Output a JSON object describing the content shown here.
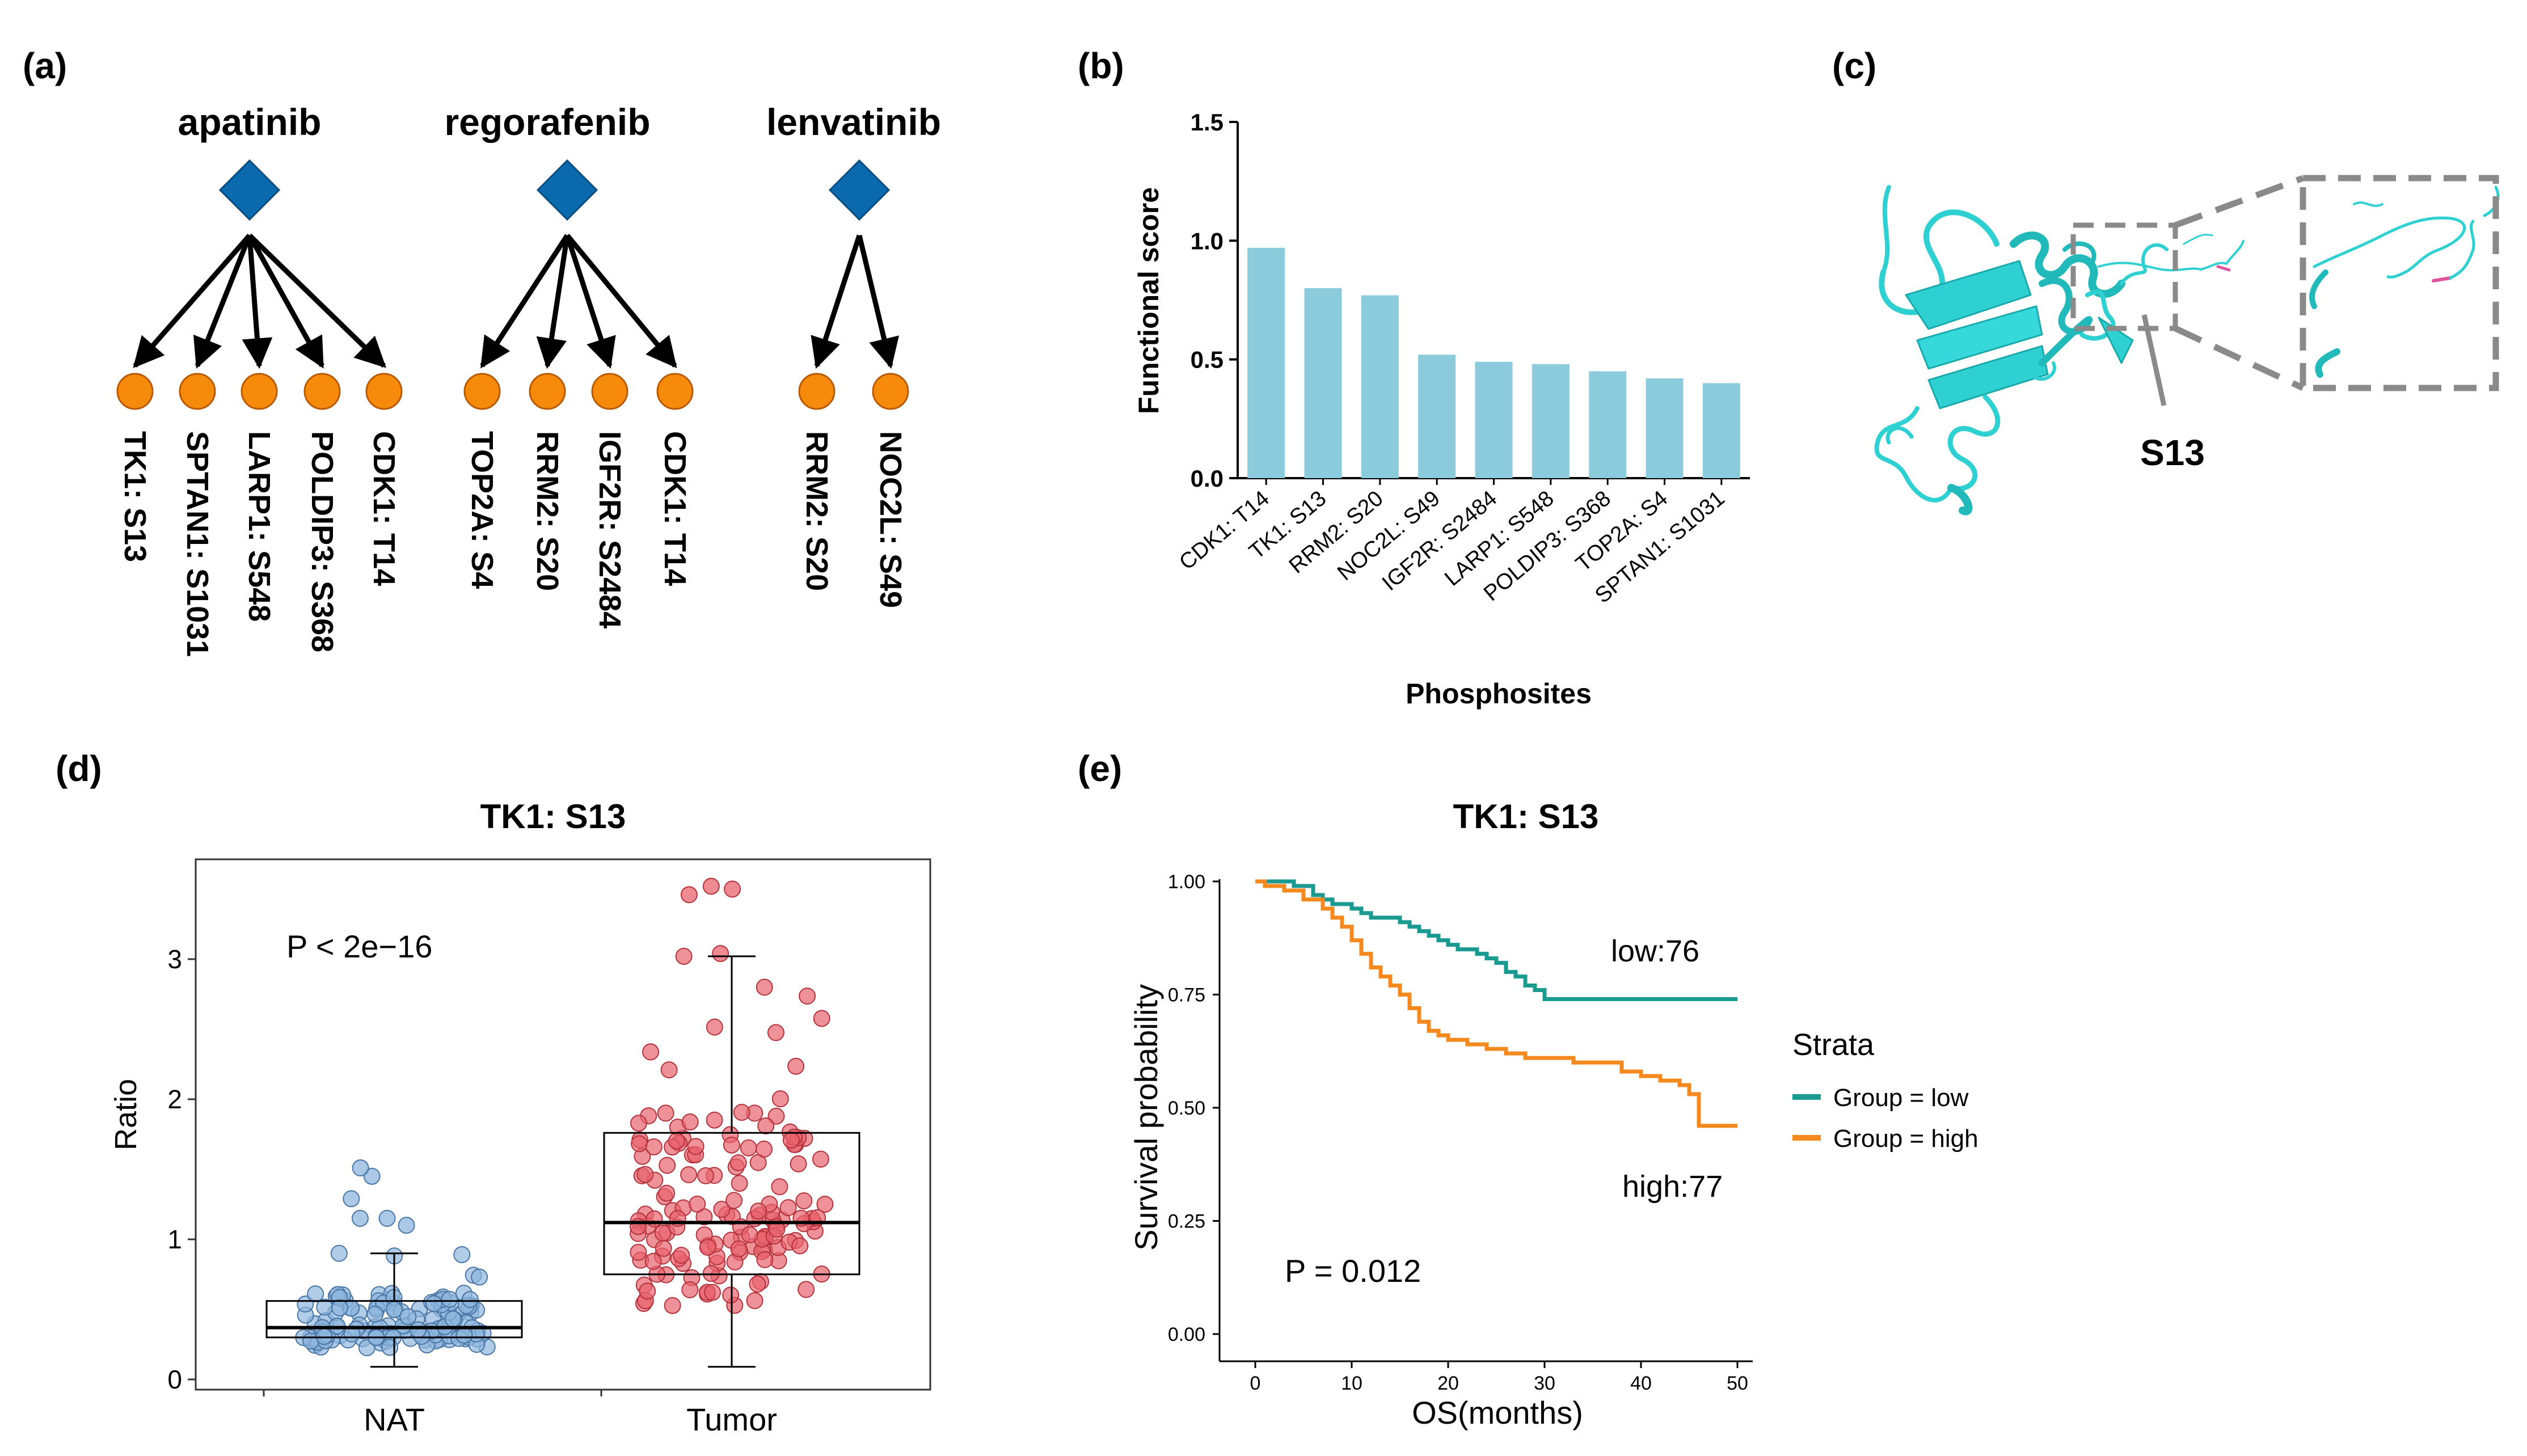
{
  "panels": {
    "a": {
      "label": "(a)",
      "drugs": [
        {
          "name": "apatinib",
          "targets": [
            "TK1: S13",
            "SPTAN1: S1031",
            "LARP1: S548",
            "POLDIP3: S368",
            "CDK1: T14"
          ]
        },
        {
          "name": "regorafenib",
          "targets": [
            "TOP2A: S4",
            "RRM2: S20",
            "IGF2R: S2484",
            "CDK1: T14"
          ]
        },
        {
          "name": "lenvatinib",
          "targets": [
            "RRM2: S20",
            "NOC2L: S49"
          ]
        }
      ]
    },
    "b": {
      "label": "(b)"
    },
    "c": {
      "label": "(c)",
      "site_label": "S13"
    },
    "d": {
      "label": "(d)",
      "p_text": "P < 2e−16"
    },
    "e": {
      "label": "(e)",
      "p_text": "P = 0.012",
      "low_count": "low:76",
      "high_count": "high:77",
      "legend_title": "Strata",
      "legend_items": [
        "Group = low",
        "Group = high"
      ]
    }
  },
  "colors": {
    "diamond": "#0a6aad",
    "node": "#f58a0b",
    "bar": "#8ccbdc",
    "nat_point": "#8fb6dd",
    "tumor_point": "#e8636c",
    "low_line": "#1a9a91",
    "high_line": "#f48a1f",
    "protein": "#2fd0d2",
    "dash": "#8a8a8a"
  },
  "chart_data": [
    {
      "type": "bar",
      "title": "",
      "xlabel": "Phosphosites",
      "ylabel": "Functional score",
      "categories": [
        "CDK1: T14",
        "TK1: S13",
        "RRM2: S20",
        "NOC2L: S49",
        "IGF2R: S2484",
        "LARP1: S548",
        "POLDIP3: S368",
        "TOP2A: S4",
        "SPTAN1: S1031"
      ],
      "values": [
        0.97,
        0.8,
        0.77,
        0.52,
        0.49,
        0.48,
        0.45,
        0.42,
        0.4
      ],
      "ylim": [
        0,
        1.5
      ],
      "yticks": [
        "0.0",
        "0.5",
        "1.0",
        "1.5"
      ]
    },
    {
      "type": "box",
      "title": "TK1: S13",
      "xlabel": "",
      "ylabel": "Ratio",
      "categories": [
        "NAT",
        "Tumor"
      ],
      "box_stats": [
        {
          "name": "NAT",
          "whisker_low": 0.09,
          "q1": 0.3,
          "median": 0.37,
          "q3": 0.56,
          "whisker_high": 0.9,
          "outliers": [
            1.45,
            1.29,
            1.51,
            1.15,
            1.15,
            1.1
          ]
        },
        {
          "name": "Tumor",
          "whisker_low": 0.09,
          "q1": 0.75,
          "median": 1.12,
          "q3": 1.76,
          "whisker_high": 3.02,
          "outliers": [
            3.5,
            3.52,
            3.46,
            3.04
          ]
        }
      ],
      "ylim": [
        -0.05,
        3.65
      ],
      "yticks": [
        "0",
        "1",
        "2",
        "3"
      ]
    },
    {
      "type": "line",
      "title": "TK1: S13",
      "xlabel": "OS(months)",
      "ylabel": "Survival probability",
      "xlim": [
        0,
        50
      ],
      "ylim": [
        0,
        1
      ],
      "xticks": [
        "0",
        "10",
        "20",
        "30",
        "40",
        "50"
      ],
      "yticks": [
        "0.00",
        "0.25",
        "0.50",
        "0.75",
        "1.00"
      ],
      "series": [
        {
          "name": "Group = low",
          "x": [
            0,
            3,
            4,
            5,
            6,
            7,
            8,
            9,
            10,
            11,
            12,
            13,
            15,
            16,
            17,
            18,
            19,
            20,
            21,
            22,
            23,
            24,
            25,
            26,
            27,
            28,
            29,
            30,
            50
          ],
          "y": [
            1.0,
            1.0,
            0.99,
            0.99,
            0.97,
            0.96,
            0.95,
            0.95,
            0.94,
            0.93,
            0.92,
            0.92,
            0.91,
            0.9,
            0.89,
            0.88,
            0.87,
            0.86,
            0.85,
            0.85,
            0.84,
            0.83,
            0.82,
            0.8,
            0.79,
            0.77,
            0.76,
            0.74,
            0.74
          ]
        },
        {
          "name": "Group = high",
          "x": [
            0,
            1,
            3,
            5,
            7,
            8,
            9,
            10,
            11,
            12,
            13,
            14,
            15,
            16,
            17,
            18,
            19,
            20,
            22,
            24,
            26,
            28,
            30,
            33,
            36,
            38,
            40,
            42,
            44,
            45,
            46,
            50
          ],
          "y": [
            1.0,
            0.99,
            0.98,
            0.96,
            0.94,
            0.92,
            0.9,
            0.87,
            0.84,
            0.81,
            0.79,
            0.77,
            0.75,
            0.72,
            0.69,
            0.67,
            0.66,
            0.65,
            0.64,
            0.63,
            0.62,
            0.61,
            0.61,
            0.6,
            0.6,
            0.58,
            0.57,
            0.56,
            0.55,
            0.53,
            0.46,
            0.46
          ]
        }
      ]
    }
  ]
}
